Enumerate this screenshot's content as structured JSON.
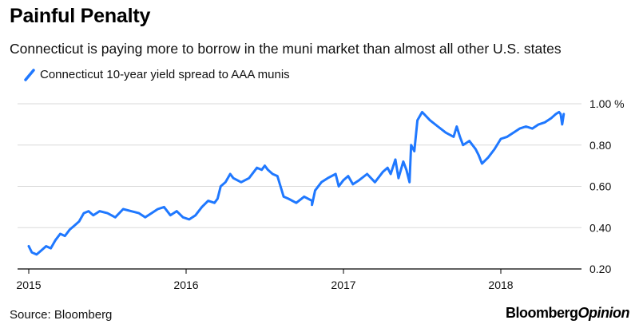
{
  "title": "Painful Penalty",
  "subtitle": "Connecticut is paying more to borrow in the muni market than almost all other U.S. states",
  "source": "Source: Bloomberg",
  "brand": {
    "part1": "Bloomberg",
    "part2": "Opinion"
  },
  "colors": {
    "series": "#1f78ff",
    "grid": "#d9d9d9",
    "axis": "#000000"
  },
  "chart_data": {
    "type": "line",
    "title": "Painful Penalty",
    "subtitle": "Connecticut is paying more to borrow in the muni market than almost all other U.S. states",
    "xlabel": "",
    "ylabel": "",
    "x_ticks": [
      {
        "value": 2015,
        "label": "2015"
      },
      {
        "value": 2016,
        "label": "2016"
      },
      {
        "value": 2017,
        "label": "2017"
      },
      {
        "value": 2018,
        "label": "2018"
      }
    ],
    "y_ticks": [
      {
        "value": 0.2,
        "label": "0.20"
      },
      {
        "value": 0.4,
        "label": "0.40"
      },
      {
        "value": 0.6,
        "label": "0.60"
      },
      {
        "value": 0.8,
        "label": "0.80"
      },
      {
        "value": 1.0,
        "label": "1.00 %"
      }
    ],
    "xlim": [
      2015.0,
      2018.45
    ],
    "ylim": [
      0.2,
      1.0
    ],
    "grid": true,
    "legend_position": "top-left",
    "series": [
      {
        "name": "Connecticut 10-year yield spread to AAA munis",
        "x": [
          2015.0,
          2015.02,
          2015.05,
          2015.08,
          2015.11,
          2015.14,
          2015.17,
          2015.2,
          2015.23,
          2015.26,
          2015.29,
          2015.32,
          2015.35,
          2015.38,
          2015.41,
          2015.45,
          2015.5,
          2015.55,
          2015.6,
          2015.65,
          2015.7,
          2015.74,
          2015.78,
          2015.82,
          2015.86,
          2015.9,
          2015.94,
          2015.98,
          2016.02,
          2016.06,
          2016.1,
          2016.14,
          2016.18,
          2016.2,
          2016.22,
          2016.25,
          2016.28,
          2016.3,
          2016.35,
          2016.4,
          2016.45,
          2016.48,
          2016.5,
          2016.52,
          2016.55,
          2016.58,
          2016.6,
          2016.62,
          2016.65,
          2016.7,
          2016.75,
          2016.8,
          2016.8,
          2016.82,
          2016.86,
          2016.9,
          2016.95,
          2016.97,
          2017.0,
          2017.03,
          2017.06,
          2017.1,
          2017.15,
          2017.2,
          2017.25,
          2017.28,
          2017.3,
          2017.33,
          2017.35,
          2017.38,
          2017.4,
          2017.42,
          2017.43,
          2017.45,
          2017.47,
          2017.5,
          2017.55,
          2017.6,
          2017.65,
          2017.7,
          2017.72,
          2017.74,
          2017.76,
          2017.8,
          2017.84,
          2017.86,
          2017.88,
          2017.92,
          2017.96,
          2018.0,
          2018.04,
          2018.08,
          2018.12,
          2018.16,
          2018.2,
          2018.24,
          2018.28,
          2018.32,
          2018.35,
          2018.37,
          2018.38,
          2018.39,
          2018.4
        ],
        "values": [
          0.31,
          0.28,
          0.27,
          0.29,
          0.31,
          0.3,
          0.34,
          0.37,
          0.36,
          0.39,
          0.41,
          0.43,
          0.47,
          0.48,
          0.46,
          0.48,
          0.47,
          0.45,
          0.49,
          0.48,
          0.47,
          0.45,
          0.47,
          0.49,
          0.5,
          0.46,
          0.48,
          0.45,
          0.44,
          0.46,
          0.5,
          0.53,
          0.52,
          0.54,
          0.6,
          0.62,
          0.66,
          0.64,
          0.62,
          0.64,
          0.69,
          0.68,
          0.7,
          0.68,
          0.66,
          0.65,
          0.6,
          0.55,
          0.54,
          0.52,
          0.55,
          0.53,
          0.51,
          0.58,
          0.62,
          0.64,
          0.66,
          0.6,
          0.63,
          0.65,
          0.61,
          0.63,
          0.66,
          0.62,
          0.67,
          0.69,
          0.66,
          0.73,
          0.64,
          0.72,
          0.68,
          0.62,
          0.8,
          0.77,
          0.92,
          0.96,
          0.92,
          0.89,
          0.86,
          0.84,
          0.89,
          0.84,
          0.8,
          0.82,
          0.78,
          0.75,
          0.71,
          0.74,
          0.78,
          0.83,
          0.84,
          0.86,
          0.88,
          0.89,
          0.88,
          0.9,
          0.91,
          0.93,
          0.95,
          0.96,
          0.95,
          0.9,
          0.95
        ]
      }
    ]
  }
}
